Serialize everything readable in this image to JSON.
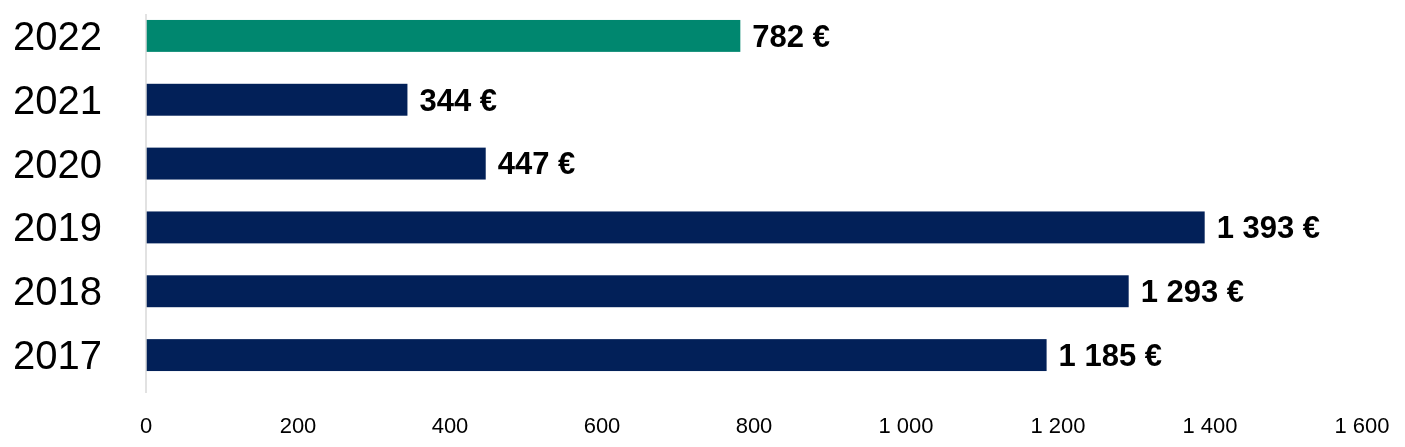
{
  "chart_data": {
    "type": "bar",
    "orientation": "horizontal",
    "categories": [
      "2022",
      "2021",
      "2020",
      "2019",
      "2018",
      "2017"
    ],
    "values": [
      782,
      344,
      447,
      1393,
      1293,
      1185
    ],
    "colors": [
      "#00876f",
      "#022058",
      "#022058",
      "#022058",
      "#022058",
      "#022058"
    ],
    "value_labels": [
      "782 €",
      "344 €",
      "447 €",
      "1 393 €",
      "1 293 €",
      "1 185 €"
    ],
    "xlim": [
      0,
      1600
    ],
    "xticks": [
      0,
      200,
      400,
      600,
      800,
      {
        "value": 1000,
        "label": "1 000"
      },
      {
        "value": 1200,
        "label": "1 200"
      },
      {
        "value": 1400,
        "label": "1 400"
      },
      {
        "value": 1600,
        "label": "1 600"
      }
    ],
    "grid": false
  }
}
